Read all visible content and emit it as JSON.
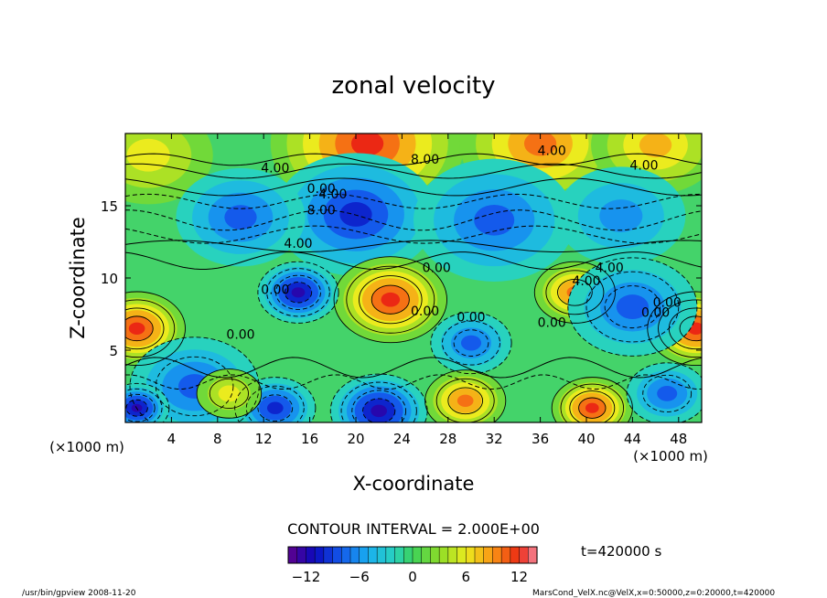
{
  "chart_data": {
    "type": "heatmap",
    "title": "zonal velocity",
    "xlabel": "X-coordinate",
    "ylabel": "Z-coordinate",
    "x_unit": "(×1000 m)",
    "y_unit": "(×1000 m)",
    "xlim": [
      0,
      50
    ],
    "ylim": [
      0,
      20
    ],
    "x_ticks": [
      4,
      8,
      12,
      16,
      20,
      24,
      28,
      32,
      36,
      40,
      44,
      48
    ],
    "y_ticks": [
      5,
      10,
      15
    ],
    "contour_interval_text": "CONTOUR INTERVAL = 2.000E+00",
    "time_text": "t=420000 s",
    "colorbar": {
      "range": [
        -14,
        14
      ],
      "ticks": [
        -12,
        -6,
        0,
        6,
        12
      ]
    },
    "contour_labels": [
      "4.00",
      "8.00",
      "4.00",
      "4.00",
      "0.00",
      "4.00",
      "8.00",
      "4.00",
      "0.00",
      "0.00",
      "0.00",
      "0.00",
      "0.00",
      "0.00",
      "0.00",
      "4.00",
      "4.00",
      "0.00"
    ],
    "features": [
      {
        "x": 21,
        "z": 19.3,
        "value": 12,
        "r": 6
      },
      {
        "x": 36,
        "z": 19.3,
        "value": 10,
        "r": 5
      },
      {
        "x": 46,
        "z": 19.2,
        "value": 8,
        "r": 4
      },
      {
        "x": 2,
        "z": 18.5,
        "value": 6,
        "r": 4
      },
      {
        "x": 20,
        "z": 14.4,
        "value": -9,
        "r": 5
      },
      {
        "x": 10,
        "z": 14.2,
        "value": -7,
        "r": 4
      },
      {
        "x": 32,
        "z": 14.0,
        "value": -7,
        "r": 5
      },
      {
        "x": 43,
        "z": 14.3,
        "value": -6,
        "r": 4
      },
      {
        "x": 23,
        "z": 8.5,
        "value": 11,
        "r": 3.5
      },
      {
        "x": 15,
        "z": 9.0,
        "value": -12,
        "r": 2.5
      },
      {
        "x": 1,
        "z": 6.5,
        "value": 11,
        "r": 3
      },
      {
        "x": 49.5,
        "z": 6.5,
        "value": 11,
        "r": 3
      },
      {
        "x": 39,
        "z": 9.0,
        "value": 9,
        "r": 2.5
      },
      {
        "x": 44,
        "z": 8.0,
        "value": -8,
        "r": 4
      },
      {
        "x": 30,
        "z": 5.5,
        "value": -8,
        "r": 2.5
      },
      {
        "x": 6,
        "z": 2.5,
        "value": -7,
        "r": 4
      },
      {
        "x": 13,
        "z": 1.0,
        "value": -10,
        "r": 2.5
      },
      {
        "x": 22,
        "z": 0.8,
        "value": -11,
        "r": 3
      },
      {
        "x": 1,
        "z": 1.0,
        "value": -12,
        "r": 2
      },
      {
        "x": 29.5,
        "z": 1.5,
        "value": 9,
        "r": 2.5
      },
      {
        "x": 40.5,
        "z": 1.0,
        "value": 12,
        "r": 2.5
      },
      {
        "x": 9,
        "z": 2.0,
        "value": 6,
        "r": 2
      },
      {
        "x": 47,
        "z": 2.0,
        "value": -7,
        "r": 2.5
      }
    ]
  },
  "footer": {
    "left": "/usr/bin/gpview   2008-11-20",
    "right": "MarsCond_VelX.nc@VelX,x=0:50000,z=0:20000,t=420000"
  }
}
